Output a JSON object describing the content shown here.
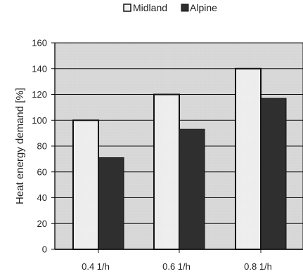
{
  "chart_data": {
    "type": "bar",
    "title": "",
    "xlabel": "",
    "ylabel": "Heat energy demand [%]",
    "categories": [
      "0.4 1/h",
      "0.6 1/h",
      "0.8 1/h"
    ],
    "series": [
      {
        "name": "Midland",
        "values": [
          100,
          120,
          140
        ],
        "color": "#ececec"
      },
      {
        "name": "Alpine",
        "values": [
          71,
          93,
          117
        ],
        "color": "#2f2f2f"
      }
    ],
    "ylim": [
      0,
      160
    ],
    "yticks": [
      0,
      20,
      40,
      60,
      80,
      100,
      120,
      140,
      160
    ],
    "grid": true,
    "legend_position": "top-center",
    "colors": {
      "plot_bg": "#d9d9d9",
      "grid": "#111111",
      "axis": "#111111",
      "midland_stroke": "#111111",
      "alpine_stroke": "#111111"
    }
  }
}
